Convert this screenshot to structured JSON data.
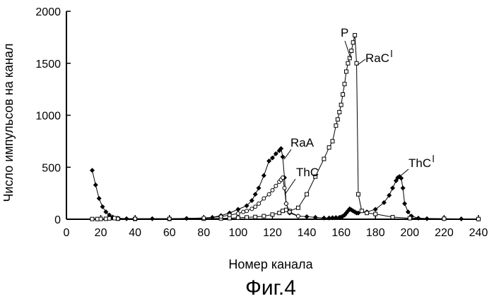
{
  "chart_data": {
    "type": "scatter",
    "title": "",
    "xlabel": "Номер канала",
    "ylabel": "Число импульсов на канал",
    "caption": "Фиг.4",
    "xlim": [
      0,
      240
    ],
    "ylim": [
      0,
      2000
    ],
    "xticks": [
      0,
      20,
      40,
      60,
      80,
      100,
      120,
      140,
      160,
      180,
      200,
      220,
      240
    ],
    "yticks": [
      0,
      500,
      1000,
      1500,
      2000
    ],
    "grid": false,
    "legend": "none",
    "series": [
      {
        "marker": "diamond",
        "color": "#000000",
        "x": [
          15,
          17,
          19,
          21,
          23,
          25,
          27,
          30,
          35,
          40,
          50,
          60,
          70,
          80,
          85,
          90,
          95,
          100,
          105,
          108,
          110,
          112,
          115,
          118,
          120,
          122,
          124,
          125,
          126,
          127,
          128,
          130,
          135,
          140,
          145,
          150,
          153,
          155,
          157,
          159,
          160,
          161,
          162,
          163,
          164,
          165,
          166,
          167,
          168,
          169,
          170,
          175,
          180,
          185,
          188,
          190,
          192,
          193,
          194,
          195,
          196,
          197,
          199,
          201,
          205,
          210,
          220,
          230,
          240
        ],
        "y": [
          470,
          330,
          200,
          120,
          70,
          40,
          20,
          10,
          5,
          5,
          5,
          5,
          8,
          12,
          18,
          35,
          60,
          95,
          130,
          180,
          240,
          300,
          420,
          560,
          590,
          630,
          660,
          680,
          600,
          400,
          150,
          60,
          30,
          25,
          18,
          12,
          12,
          14,
          16,
          18,
          20,
          30,
          40,
          60,
          80,
          100,
          90,
          80,
          70,
          60,
          60,
          70,
          95,
          160,
          230,
          300,
          370,
          400,
          410,
          395,
          300,
          150,
          70,
          30,
          10,
          5,
          5,
          3,
          2
        ]
      },
      {
        "marker": "square",
        "color": "#000000",
        "x": [
          15,
          18,
          20,
          23,
          25,
          28,
          30,
          40,
          60,
          80,
          90,
          95,
          100,
          105,
          110,
          115,
          120,
          124,
          126,
          128,
          130,
          135,
          140,
          145,
          150,
          153,
          155,
          157,
          158,
          159,
          160,
          161,
          162,
          163,
          164,
          165,
          166,
          167,
          168,
          169,
          170,
          172,
          175,
          180,
          190,
          200,
          220,
          240
        ],
        "y": [
          2,
          2,
          3,
          4,
          8,
          10,
          5,
          3,
          3,
          5,
          8,
          10,
          15,
          18,
          22,
          30,
          45,
          60,
          80,
          90,
          80,
          110,
          240,
          410,
          580,
          690,
          750,
          900,
          960,
          1030,
          1100,
          1200,
          1300,
          1420,
          1500,
          1550,
          1620,
          1700,
          1770,
          1500,
          240,
          80,
          60,
          50,
          20,
          10,
          5,
          2
        ]
      },
      {
        "marker": "circle",
        "color": "#000000",
        "x": [
          30,
          40,
          60,
          80,
          90,
          95,
          100,
          103,
          105,
          108,
          110,
          112,
          115,
          118,
          120,
          122,
          124,
          125,
          126,
          127,
          128,
          130,
          135
        ],
        "y": [
          5,
          5,
          5,
          12,
          25,
          40,
          55,
          70,
          80,
          100,
          120,
          150,
          200,
          240,
          280,
          320,
          360,
          380,
          400,
          300,
          150,
          70,
          30
        ]
      }
    ],
    "annotations": [
      {
        "text": "P",
        "x": 166,
        "y": 1700
      },
      {
        "text": "RaC",
        "x": 168,
        "y": 1490
      },
      {
        "text": "RaA",
        "x": 126,
        "y": 650
      },
      {
        "text": "ThC",
        "x": 127,
        "y": 380
      },
      {
        "text": "ThC",
        "x": 193,
        "y": 400
      }
    ]
  }
}
